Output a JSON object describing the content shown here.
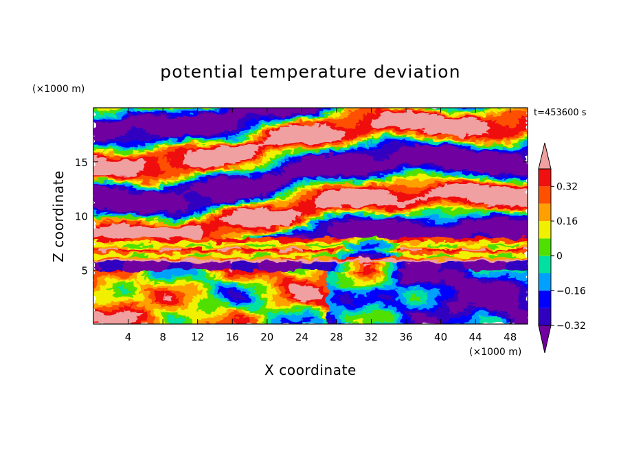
{
  "chart_data": {
    "type": "heatmap",
    "title": "potential temperature deviation",
    "xlabel": "X coordinate",
    "ylabel": "Z coordinate",
    "x_unit": "(×1000 m)",
    "y_unit": "(×1000 m)",
    "time_label": "t=453600 s",
    "xlim": [
      0,
      50
    ],
    "ylim": [
      0,
      20
    ],
    "x_ticks": [
      4,
      8,
      12,
      16,
      20,
      24,
      28,
      32,
      36,
      40,
      44,
      48
    ],
    "y_ticks": [
      5,
      10,
      15
    ],
    "colorbar": {
      "levels": [
        -0.4,
        -0.32,
        -0.24,
        -0.16,
        -0.08,
        0,
        0.08,
        0.16,
        0.24,
        0.32,
        0.4
      ],
      "labeled_ticks": [
        "0.32",
        "0.16",
        "0",
        "−0.16",
        "−0.32"
      ],
      "labeled_values": [
        0.32,
        0.16,
        0,
        -0.16,
        -0.32
      ],
      "colors": [
        "#7000a0",
        "#3000c0",
        "#0000ff",
        "#00a0ff",
        "#00e0a0",
        "#50e000",
        "#f0f000",
        "#ffa000",
        "#ff5000",
        "#f01010",
        "#f0a0a0"
      ],
      "extend": "both"
    },
    "field_description": {
      "layers_by_height": [
        {
          "z_range": [
            0,
            5
          ],
          "character": "turbulent convective eddies, warm (red/pink) on left half, cool (blue/purple) on right half"
        },
        {
          "z_range": [
            5,
            6
          ],
          "character": "thin cool layer (purple) with warm plume descending near x=28-34"
        },
        {
          "z_range": [
            6,
            8
          ],
          "character": "strong horizontal stable band: yellow/orange/red stripes"
        },
        {
          "z_range": [
            8,
            20
          ],
          "character": "interleaved warm (pink) and cool (purple) filaments with sheared structure"
        }
      ]
    }
  }
}
